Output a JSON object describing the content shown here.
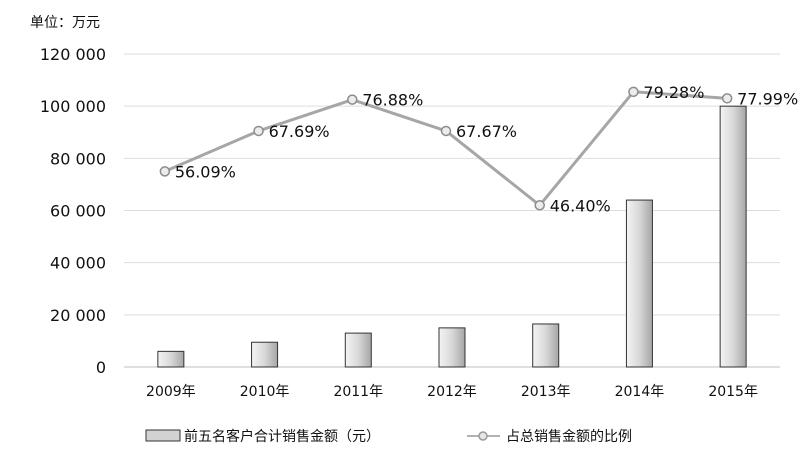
{
  "chart_data": {
    "type": "bar",
    "unit_label": "单位：万元",
    "categories": [
      "2009年",
      "2010年",
      "2011年",
      "2012年",
      "2013年",
      "2014年",
      "2015年"
    ],
    "y_ticks": [
      "0",
      "20 000",
      "40 000",
      "60 000",
      "80 000",
      "100 000",
      "120 000"
    ],
    "ylim": [
      0,
      120000
    ],
    "grid": true,
    "legend_position": "bottom",
    "series": [
      {
        "name": "前五名客户合计销售金额（元）",
        "type": "bar",
        "values": [
          6000,
          9500,
          13000,
          15000,
          16500,
          64000,
          100000
        ]
      },
      {
        "name": "占总销售金额的比例",
        "type": "line",
        "values": [
          56.09,
          67.69,
          76.88,
          67.67,
          46.4,
          79.28,
          77.99
        ],
        "labels": [
          "56.09%",
          "67.69%",
          "76.88%",
          "67.67%",
          "46.40%",
          "79.28%",
          "77.99%"
        ],
        "plot_values": [
          75000,
          90500,
          102500,
          90500,
          62000,
          105500,
          103000
        ]
      }
    ]
  }
}
